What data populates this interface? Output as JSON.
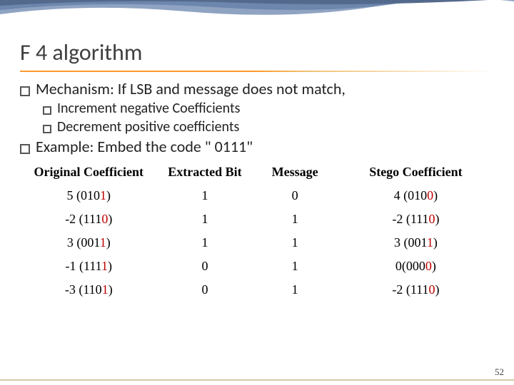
{
  "title": "F 4 algorithm",
  "bullets": {
    "b1": "Mechanism: If LSB and message does not match,",
    "b1a": "Increment negative Coefficients",
    "b1b": "Decrement positive coefficients",
    "b2": "Example: Embed the code \" 0111\""
  },
  "table": {
    "headers": {
      "c1": "Original Coefficient",
      "c2": "Extracted Bit",
      "c3": "Message",
      "c4": "Stego Coefficient"
    },
    "rows": [
      {
        "coef_pre": "5 (010",
        "coef_r": "1",
        "coef_post": ")",
        "ext": "1",
        "msg": "0",
        "st_pre": "4 (010",
        "st_r": "0",
        "st_post": ")"
      },
      {
        "coef_pre": "-2 (111",
        "coef_r": "0",
        "coef_post": ")",
        "ext": "1",
        "msg": "1",
        "st_pre": "-2 (111",
        "st_r": "0",
        "st_post": ")"
      },
      {
        "coef_pre": "3 (001",
        "coef_r": "1",
        "coef_post": ")",
        "ext": "1",
        "msg": "1",
        "st_pre": "3 (001",
        "st_r": "1",
        "st_post": ")"
      },
      {
        "coef_pre": "-1 (111",
        "coef_r": "1",
        "coef_post": ")",
        "ext": "0",
        "msg": "1",
        "st_pre": "0(000",
        "st_r": "0",
        "st_post": ")"
      },
      {
        "coef_pre": "-3 (110",
        "coef_r": "1",
        "coef_post": ")",
        "ext": "0",
        "msg": "1",
        "st_pre": "-2 (111",
        "st_r": "0",
        "st_post": ")"
      }
    ]
  },
  "page_number": "52",
  "colors": {
    "title": "#3f3f3f",
    "text": "#222222",
    "red": "#c00000",
    "underline_start": "#ff9a2e",
    "bottom_line": "#d4c9a8",
    "wave1": "#546a8c",
    "wave2": "#6d86ad",
    "wave3": "#8fa3c2"
  }
}
